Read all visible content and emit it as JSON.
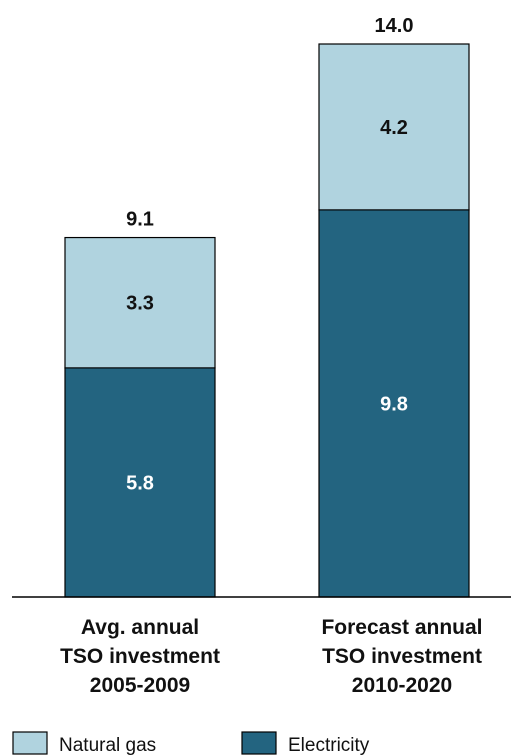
{
  "chart_data": {
    "type": "bar",
    "stacked": true,
    "categories": [
      [
        "Avg. annual",
        "TSO investment",
        "2005-2009"
      ],
      [
        "Forecast annual",
        "TSO investment",
        "2010-2020"
      ]
    ],
    "series": [
      {
        "name": "Electricity",
        "values": [
          5.8,
          9.8
        ],
        "labels": [
          "5.8",
          "9.8"
        ],
        "color": "#236480",
        "label_color": "#ffffff"
      },
      {
        "name": "Natural gas",
        "values": [
          3.3,
          4.2
        ],
        "labels": [
          "3.3",
          "4.2"
        ],
        "color": "#b0d3df",
        "label_color": "#111111"
      }
    ],
    "totals": [
      "9.1",
      "14.0"
    ],
    "legend": {
      "position": "bottom-left",
      "items": [
        {
          "name": "Natural gas",
          "color": "#b0d3df"
        },
        {
          "name": "Electricity",
          "color": "#236480"
        }
      ]
    },
    "ylim": [
      0,
      14.0
    ],
    "grid": false
  }
}
